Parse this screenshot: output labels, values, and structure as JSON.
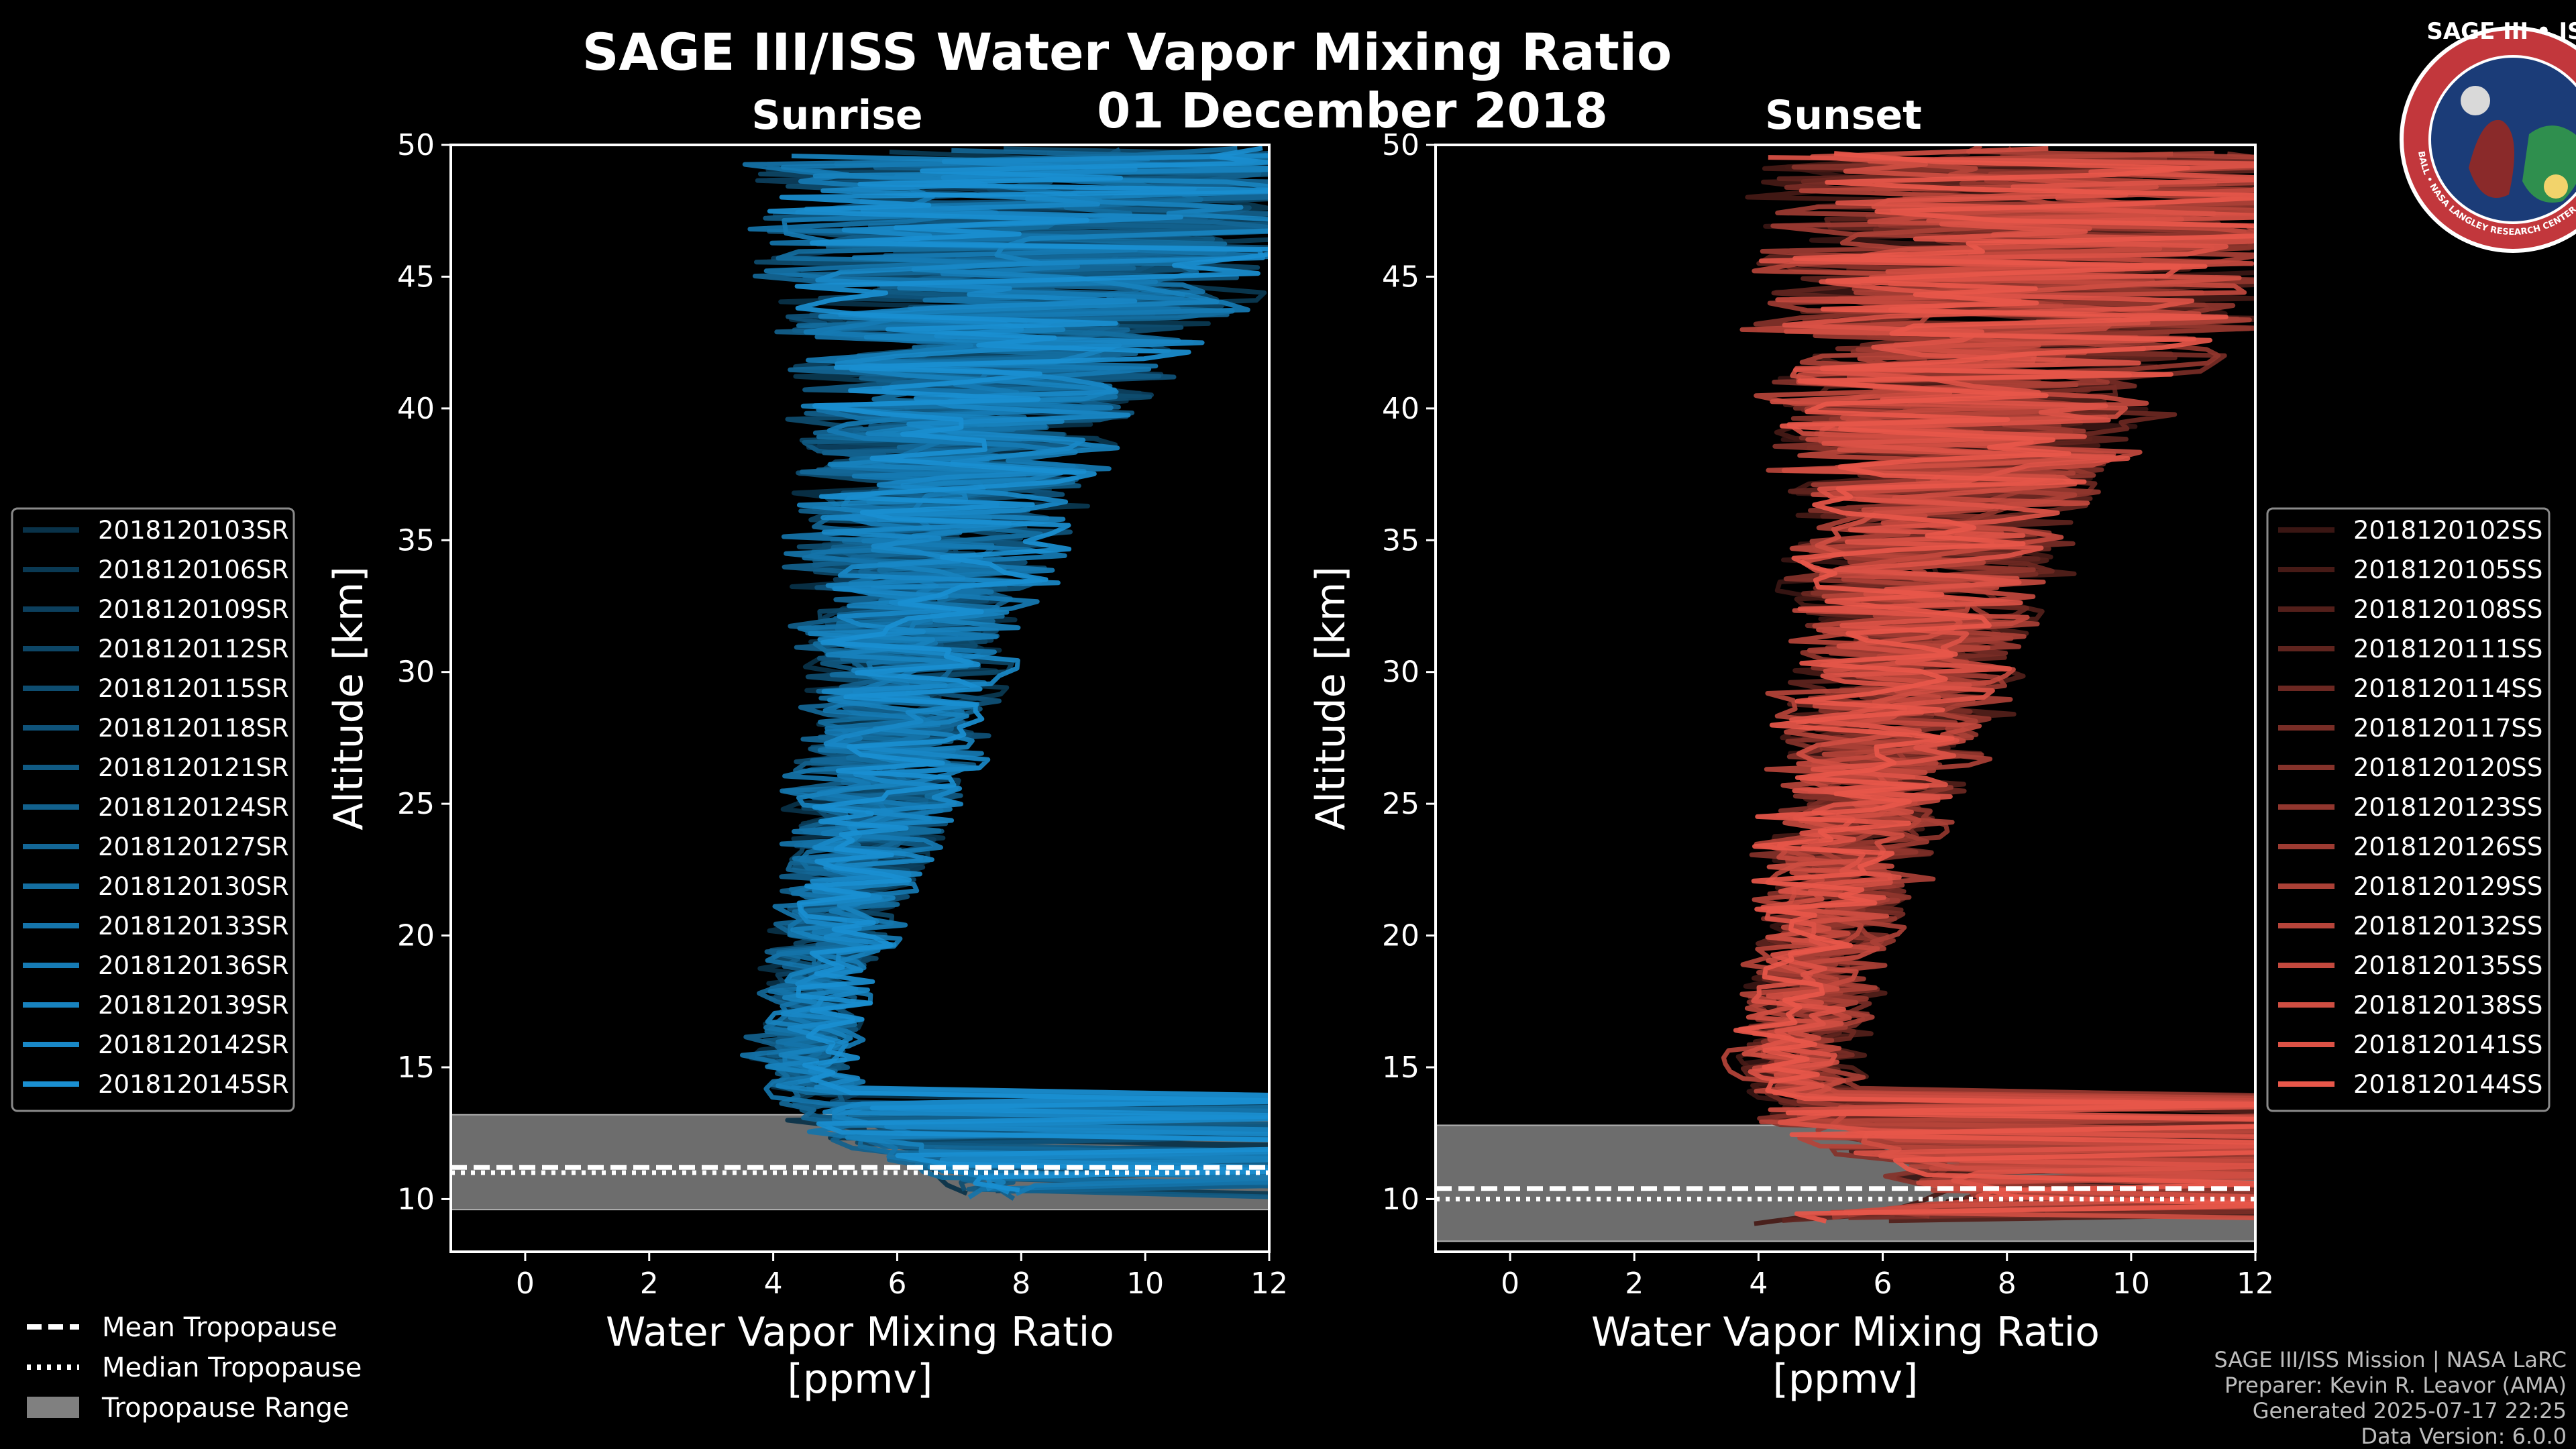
{
  "title": "SAGE III/ISS Water Vapor Mixing Ratio",
  "date": "01 December 2018",
  "logo": {
    "text": "SAGE III • ISS",
    "ring_text": "BALL • NASA LANGLEY RESEARCH CENTER • TAS-I • ESA",
    "colors": {
      "ring": "#c2373c",
      "inner": "#1b3c78",
      "earth": "#2f8f4e"
    }
  },
  "colors": {
    "sunrise": "#1a8fd1",
    "sunset": "#e8574a",
    "tropo_band": "#808080",
    "background": "#000000"
  },
  "chart_data": [
    {
      "type": "line",
      "panel": "sunrise",
      "subtitle": "Sunrise",
      "xlabel": "Water Vapor Mixing Ratio\n[ppmv]",
      "ylabel": "Altitude [km]",
      "xlim": [
        -1.2,
        12
      ],
      "ylim": [
        8,
        50
      ],
      "xticks": [
        0,
        2,
        4,
        6,
        8,
        10,
        12
      ],
      "yticks": [
        10,
        15,
        20,
        25,
        30,
        35,
        40,
        45,
        50
      ],
      "series_names": [
        "2018120103SR",
        "2018120106SR",
        "2018120109SR",
        "2018120112SR",
        "2018120115SR",
        "2018120118SR",
        "2018120121SR",
        "2018120124SR",
        "2018120127SR",
        "2018120130SR",
        "2018120133SR",
        "2018120136SR",
        "2018120139SR",
        "2018120142SR",
        "2018120145SR"
      ],
      "profile": {
        "alt": [
          10,
          13,
          15,
          18,
          20,
          23,
          25,
          28,
          30,
          33,
          35,
          38,
          40,
          43,
          45,
          48,
          50
        ],
        "mean": [
          8.0,
          5.0,
          4.5,
          4.7,
          5.0,
          5.4,
          5.7,
          6.0,
          6.2,
          6.4,
          6.6,
          6.9,
          7.2,
          7.6,
          8.0,
          8.5,
          9.0
        ],
        "spread": [
          0.5,
          0.6,
          0.7,
          0.8,
          0.9,
          1.1,
          1.3,
          1.5,
          1.7,
          1.9,
          2.1,
          2.5,
          3.0,
          3.6,
          4.2,
          4.8,
          5.2
        ]
      },
      "tropopause": {
        "mean": 11.2,
        "median": 11.0,
        "range": [
          9.6,
          13.2
        ]
      },
      "legend_position": "left"
    },
    {
      "type": "line",
      "panel": "sunset",
      "subtitle": "Sunset",
      "xlabel": "Water Vapor Mixing Ratio\n[ppmv]",
      "ylabel": "Altitude [km]",
      "xlim": [
        -1.2,
        12
      ],
      "ylim": [
        8,
        50
      ],
      "xticks": [
        0,
        2,
        4,
        6,
        8,
        10,
        12
      ],
      "yticks": [
        10,
        15,
        20,
        25,
        30,
        35,
        40,
        45,
        50
      ],
      "series_names": [
        "2018120102SS",
        "2018120105SS",
        "2018120108SS",
        "2018120111SS",
        "2018120114SS",
        "2018120117SS",
        "2018120120SS",
        "2018120123SS",
        "2018120126SS",
        "2018120129SS",
        "2018120132SS",
        "2018120135SS",
        "2018120138SS",
        "2018120141SS",
        "2018120144SS"
      ],
      "profile": {
        "alt": [
          9,
          10,
          13,
          15,
          18,
          20,
          23,
          25,
          28,
          30,
          33,
          35,
          38,
          40,
          43,
          45,
          48,
          50
        ],
        "mean": [
          4.5,
          8.0,
          5.0,
          4.6,
          4.8,
          5.1,
          5.5,
          5.8,
          6.1,
          6.3,
          6.5,
          6.8,
          7.2,
          7.6,
          8.0,
          8.5,
          9.0,
          9.5
        ],
        "spread": [
          1.2,
          0.8,
          0.7,
          0.8,
          0.9,
          1.0,
          1.2,
          1.4,
          1.6,
          1.8,
          2.0,
          2.3,
          2.8,
          3.3,
          3.9,
          4.5,
          5.0,
          5.4
        ]
      },
      "tropopause": {
        "mean": 10.4,
        "median": 10.0,
        "range": [
          8.4,
          12.8
        ]
      },
      "legend_position": "right"
    }
  ],
  "shared_legend": {
    "mean": "Mean Tropopause",
    "median": "Median Tropopause",
    "range": "Tropopause Range"
  },
  "credits": [
    "SAGE III/ISS Mission | NASA LaRC",
    "Preparer: Kevin R. Leavor (AMA)",
    "Generated 2025-07-17 22:25",
    "Data Version: 6.0.0"
  ]
}
